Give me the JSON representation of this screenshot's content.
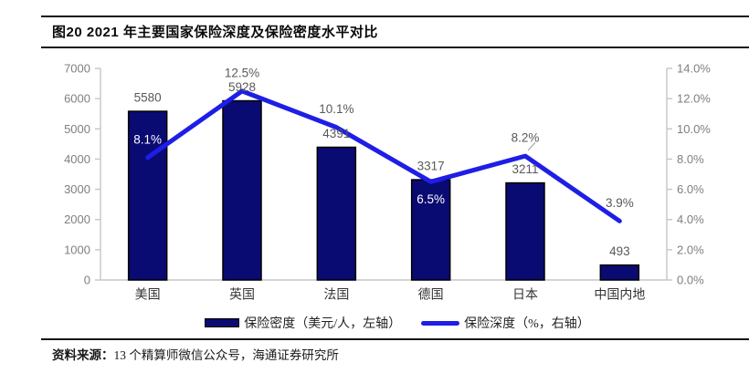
{
  "title": "图20 2021 年主要国家保险深度及保险密度水平对比",
  "source": {
    "label": "资料来源：",
    "text": "13 个精算师微信公众号，海通证券研究所"
  },
  "legend": {
    "items": [
      {
        "label": "保险密度（美元/人，左轴）",
        "swatch": "bar"
      },
      {
        "label": "保险深度（%，右轴）",
        "swatch": "line"
      }
    ]
  },
  "colors": {
    "bar_fill": "#0A0A73",
    "bar_border": "#000000",
    "line": "#1E1EE6",
    "axis_line": "#C6C6C6",
    "tick_label": "#7F7F7F",
    "value_label": "#595959",
    "inside_label": "#FFFFFF",
    "category_label": "#333333",
    "leader_line": "#A6A6A6"
  },
  "chart_data": {
    "type": "bar+line combo",
    "title": "图20 2021 年主要国家保险深度及保险密度水平对比",
    "categories": [
      "美国",
      "英国",
      "法国",
      "德国",
      "日本",
      "中国内地"
    ],
    "series": [
      {
        "name": "保险密度（美元/人，左轴）",
        "type": "bar",
        "axis": "left",
        "values": [
          5580,
          5928,
          4391,
          3317,
          3211,
          493
        ],
        "labels": [
          "5580",
          "5928",
          "4391",
          "3317",
          "3211",
          "493"
        ]
      },
      {
        "name": "保险深度（%，右轴）",
        "type": "line",
        "axis": "right",
        "values": [
          8.1,
          12.5,
          10.1,
          6.5,
          8.2,
          3.9
        ],
        "labels": [
          "8.1%",
          "12.5%",
          "10.1%",
          "6.5%",
          "8.2%",
          "3.9%"
        ]
      }
    ],
    "left_axis": {
      "min": 0,
      "max": 7000,
      "step": 1000,
      "tick_labels": [
        "7000",
        "6000",
        "5000",
        "4000",
        "3000",
        "2000",
        "1000",
        "0"
      ]
    },
    "right_axis": {
      "min": 0,
      "max": 14,
      "step": 2,
      "tick_labels": [
        "14.0%",
        "12.0%",
        "10.0%",
        "8.0%",
        "6.0%",
        "4.0%",
        "2.0%",
        "0.0%"
      ]
    },
    "grid": false,
    "legend_position": "bottom"
  }
}
